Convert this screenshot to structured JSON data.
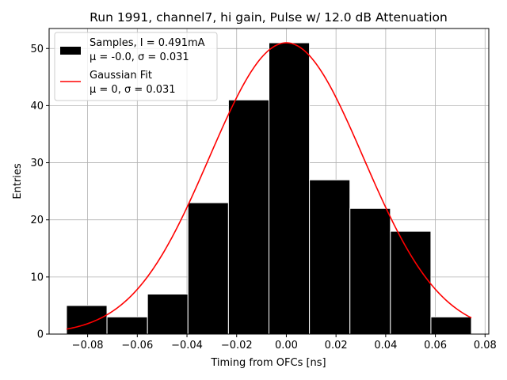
{
  "chart_data": {
    "type": "bar",
    "title": "Run 1991, channel7, hi gain, Pulse w/ 12.0 dB Attenuation",
    "xlabel": "Timing from OFCs [ns]",
    "ylabel": "Entries",
    "xlim": [
      -0.0955,
      0.0815
    ],
    "ylim": [
      0,
      53.5
    ],
    "xticks": [
      -0.08,
      -0.06,
      -0.04,
      -0.02,
      0.0,
      0.02,
      0.04,
      0.06,
      0.08
    ],
    "xtick_labels": [
      "−0.08",
      "−0.06",
      "−0.04",
      "−0.02",
      "0.00",
      "0.02",
      "0.04",
      "0.06",
      "0.08"
    ],
    "yticks": [
      0,
      10,
      20,
      30,
      40,
      50
    ],
    "ytick_labels": [
      "0",
      "10",
      "20",
      "30",
      "40",
      "50"
    ],
    "grid": true,
    "legend_position": "top-left",
    "histogram": {
      "bin_edges": [
        -0.0885,
        -0.0722,
        -0.0559,
        -0.0396,
        -0.0233,
        -0.007,
        0.0093,
        0.0256,
        0.0419,
        0.0582,
        0.0745
      ],
      "counts": [
        5,
        3,
        7,
        23,
        41,
        51,
        27,
        22,
        18,
        3
      ],
      "color": "#000000",
      "edgecolor": "#ffffff"
    },
    "fit": {
      "type": "gaussian",
      "mu": 0.0,
      "sigma": 0.031,
      "amplitude": 51,
      "x_range": [
        -0.0885,
        0.0745
      ],
      "color": "#ff0000"
    },
    "legend": [
      {
        "label_line1": "Samples, I = 0.491mA",
        "label_line2": "μ = -0.0, σ = 0.031",
        "swatch": "#000000",
        "kind": "patch"
      },
      {
        "label_line1": "Gaussian Fit",
        "label_line2": "μ = 0, σ = 0.031",
        "swatch": "#ff0000",
        "kind": "line"
      }
    ]
  }
}
